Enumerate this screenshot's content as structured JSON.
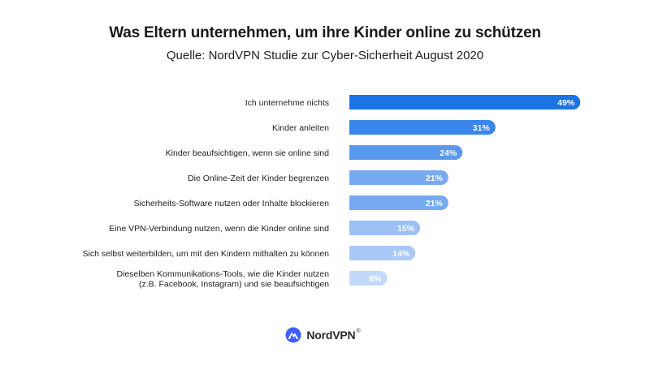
{
  "chart_data": {
    "type": "bar",
    "orientation": "horizontal",
    "title": "Was Eltern unternehmen, um ihre Kinder online zu schützen",
    "subtitle": "Quelle: NordVPN Studie zur Cyber-Sicherheit August 2020",
    "categories": [
      [
        "Ich unternehme nichts"
      ],
      [
        "Kinder anleiten"
      ],
      [
        "Kinder beaufsichtigen, wenn sie online sind"
      ],
      [
        "Die Online-Zeit der Kinder begrenzen"
      ],
      [
        "Sicherheits-Software nutzen oder Inhalte blockieren"
      ],
      [
        "Eine VPN-Verbindung nutzen, wenn die Kinder online sind"
      ],
      [
        "Sich selbst weiterbilden, um mit den Kindern mithalten zu können"
      ],
      [
        "Dieselben Kommunikations-Tools, wie die Kinder nutzen",
        "(z.B. Facebook, Instagram) und sie beaufsichtigen"
      ]
    ],
    "values": [
      49,
      31,
      24,
      21,
      21,
      15,
      14,
      8
    ],
    "value_labels": [
      "49%",
      "31%",
      "24%",
      "21%",
      "21%",
      "15%",
      "14%",
      "8%"
    ],
    "bar_colors": [
      "#1b74e4",
      "#3a85ea",
      "#5a98ee",
      "#78aaf1",
      "#78aaf1",
      "#9dc1f5",
      "#a9c9f6",
      "#c2d9f9"
    ],
    "xlim": [
      0,
      50
    ],
    "unit": "%"
  },
  "brand": {
    "name": "NordVPN",
    "trademark": "®"
  }
}
